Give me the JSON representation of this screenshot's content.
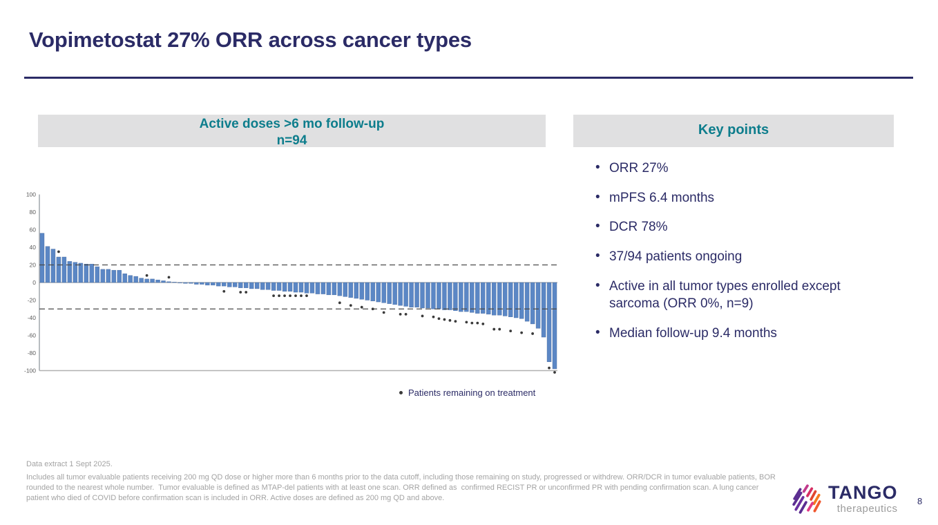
{
  "slide": {
    "title": "Vopimetostat 27% ORR across cancer types",
    "page_number": "8"
  },
  "chart_panel": {
    "header_line1": "Active doses  >6 mo follow-up",
    "header_line2": "n=94",
    "legend_label": "Patients remaining on treatment"
  },
  "key_points": {
    "header": "Key points",
    "items": [
      "ORR 27%",
      "mPFS 6.4 months",
      "DCR 78%",
      "37/94 patients ongoing",
      "Active in all tumor types enrolled except sarcoma (ORR 0%, n=9)",
      "Median follow-up 9.4 months"
    ]
  },
  "footnotes": {
    "line1": "Data extract 1 Sept 2025.",
    "line2": "Includes all tumor evaluable patients receiving 200 mg QD dose or higher more than 6 months prior to the data cutoff, including those remaining on study, progressed or withdrew. ORR/DCR in tumor evaluable patients, BOR rounded to the nearest whole number.  Tumor evaluable is defined as MTAP-del patients with at least one scan. ORR defined as  confirmed RECIST PR or unconfirmed PR with pending confirmation scan. A lung cancer patient who died of COVID before confirmation scan is included in ORR. Active doses are defined as 200 mg QD and above."
  },
  "logo": {
    "brand": "TANGO",
    "sub": "therapeutics"
  },
  "colors": {
    "navy": "#2B2B66",
    "teal": "#0D7D8C",
    "panel_gray": "#E0E0E1",
    "bar_blue": "#5B87C5",
    "marker_gray": "#3A3A3A",
    "footnote_gray": "#A3A3A3"
  },
  "chart_data": {
    "type": "bar",
    "title": "Active doses >6 mo follow-up, n=94 (waterfall of best % tumor change per patient)",
    "xlabel": "",
    "ylabel": "",
    "ylim": [
      -100,
      100
    ],
    "yticks": [
      100,
      80,
      60,
      40,
      20,
      0,
      -20,
      -40,
      -60,
      -80,
      -100
    ],
    "reference_lines": [
      20,
      -30
    ],
    "grid": false,
    "legend_position": "bottom",
    "legend": [
      "Patients remaining on treatment"
    ],
    "bar_color": "#5B87C5",
    "marker_color": "#3A3A3A",
    "values": [
      56,
      41,
      38,
      29,
      29,
      24,
      23,
      22,
      21,
      21,
      18,
      15,
      15,
      14,
      14,
      10,
      8,
      7,
      5,
      4,
      4,
      3,
      2,
      1,
      0.5,
      -0.5,
      -1,
      -1,
      -2,
      -2,
      -3,
      -3,
      -4,
      -4,
      -5,
      -5,
      -6,
      -6,
      -7,
      -7,
      -8,
      -8,
      -9,
      -9,
      -10,
      -10,
      -11,
      -11,
      -12,
      -12,
      -13,
      -13,
      -14,
      -14,
      -15,
      -16,
      -17,
      -18,
      -19,
      -20,
      -21,
      -22,
      -23,
      -24,
      -25,
      -26,
      -27,
      -28,
      -28,
      -29,
      -29,
      -30,
      -30,
      -31,
      -31,
      -32,
      -33,
      -33,
      -34,
      -35,
      -35,
      -36,
      -37,
      -37,
      -38,
      -39,
      -40,
      -41,
      -44,
      -47,
      -52,
      -62,
      -90,
      -98
    ],
    "ongoing_markers": [
      {
        "bar": 4,
        "value": 35
      },
      {
        "bar": 20,
        "value": 8
      },
      {
        "bar": 24,
        "value": 6
      },
      {
        "bar": 34,
        "value": -10
      },
      {
        "bar": 37,
        "value": -11
      },
      {
        "bar": 38,
        "value": -11
      },
      {
        "bar": 43,
        "value": -15
      },
      {
        "bar": 44,
        "value": -15
      },
      {
        "bar": 45,
        "value": -15
      },
      {
        "bar": 46,
        "value": -15
      },
      {
        "bar": 47,
        "value": -15
      },
      {
        "bar": 48,
        "value": -15
      },
      {
        "bar": 49,
        "value": -15
      },
      {
        "bar": 55,
        "value": -23
      },
      {
        "bar": 57,
        "value": -26
      },
      {
        "bar": 59,
        "value": -28
      },
      {
        "bar": 61,
        "value": -30
      },
      {
        "bar": 63,
        "value": -34
      },
      {
        "bar": 66,
        "value": -36
      },
      {
        "bar": 67,
        "value": -36
      },
      {
        "bar": 70,
        "value": -38
      },
      {
        "bar": 72,
        "value": -39
      },
      {
        "bar": 73,
        "value": -41
      },
      {
        "bar": 74,
        "value": -42
      },
      {
        "bar": 75,
        "value": -43
      },
      {
        "bar": 76,
        "value": -44
      },
      {
        "bar": 78,
        "value": -45
      },
      {
        "bar": 79,
        "value": -46
      },
      {
        "bar": 80,
        "value": -46
      },
      {
        "bar": 81,
        "value": -47
      },
      {
        "bar": 83,
        "value": -53
      },
      {
        "bar": 84,
        "value": -53
      },
      {
        "bar": 86,
        "value": -55
      },
      {
        "bar": 88,
        "value": -57
      },
      {
        "bar": 90,
        "value": -58
      },
      {
        "bar": 93,
        "value": -97
      },
      {
        "bar": 94,
        "value": -102
      }
    ]
  }
}
